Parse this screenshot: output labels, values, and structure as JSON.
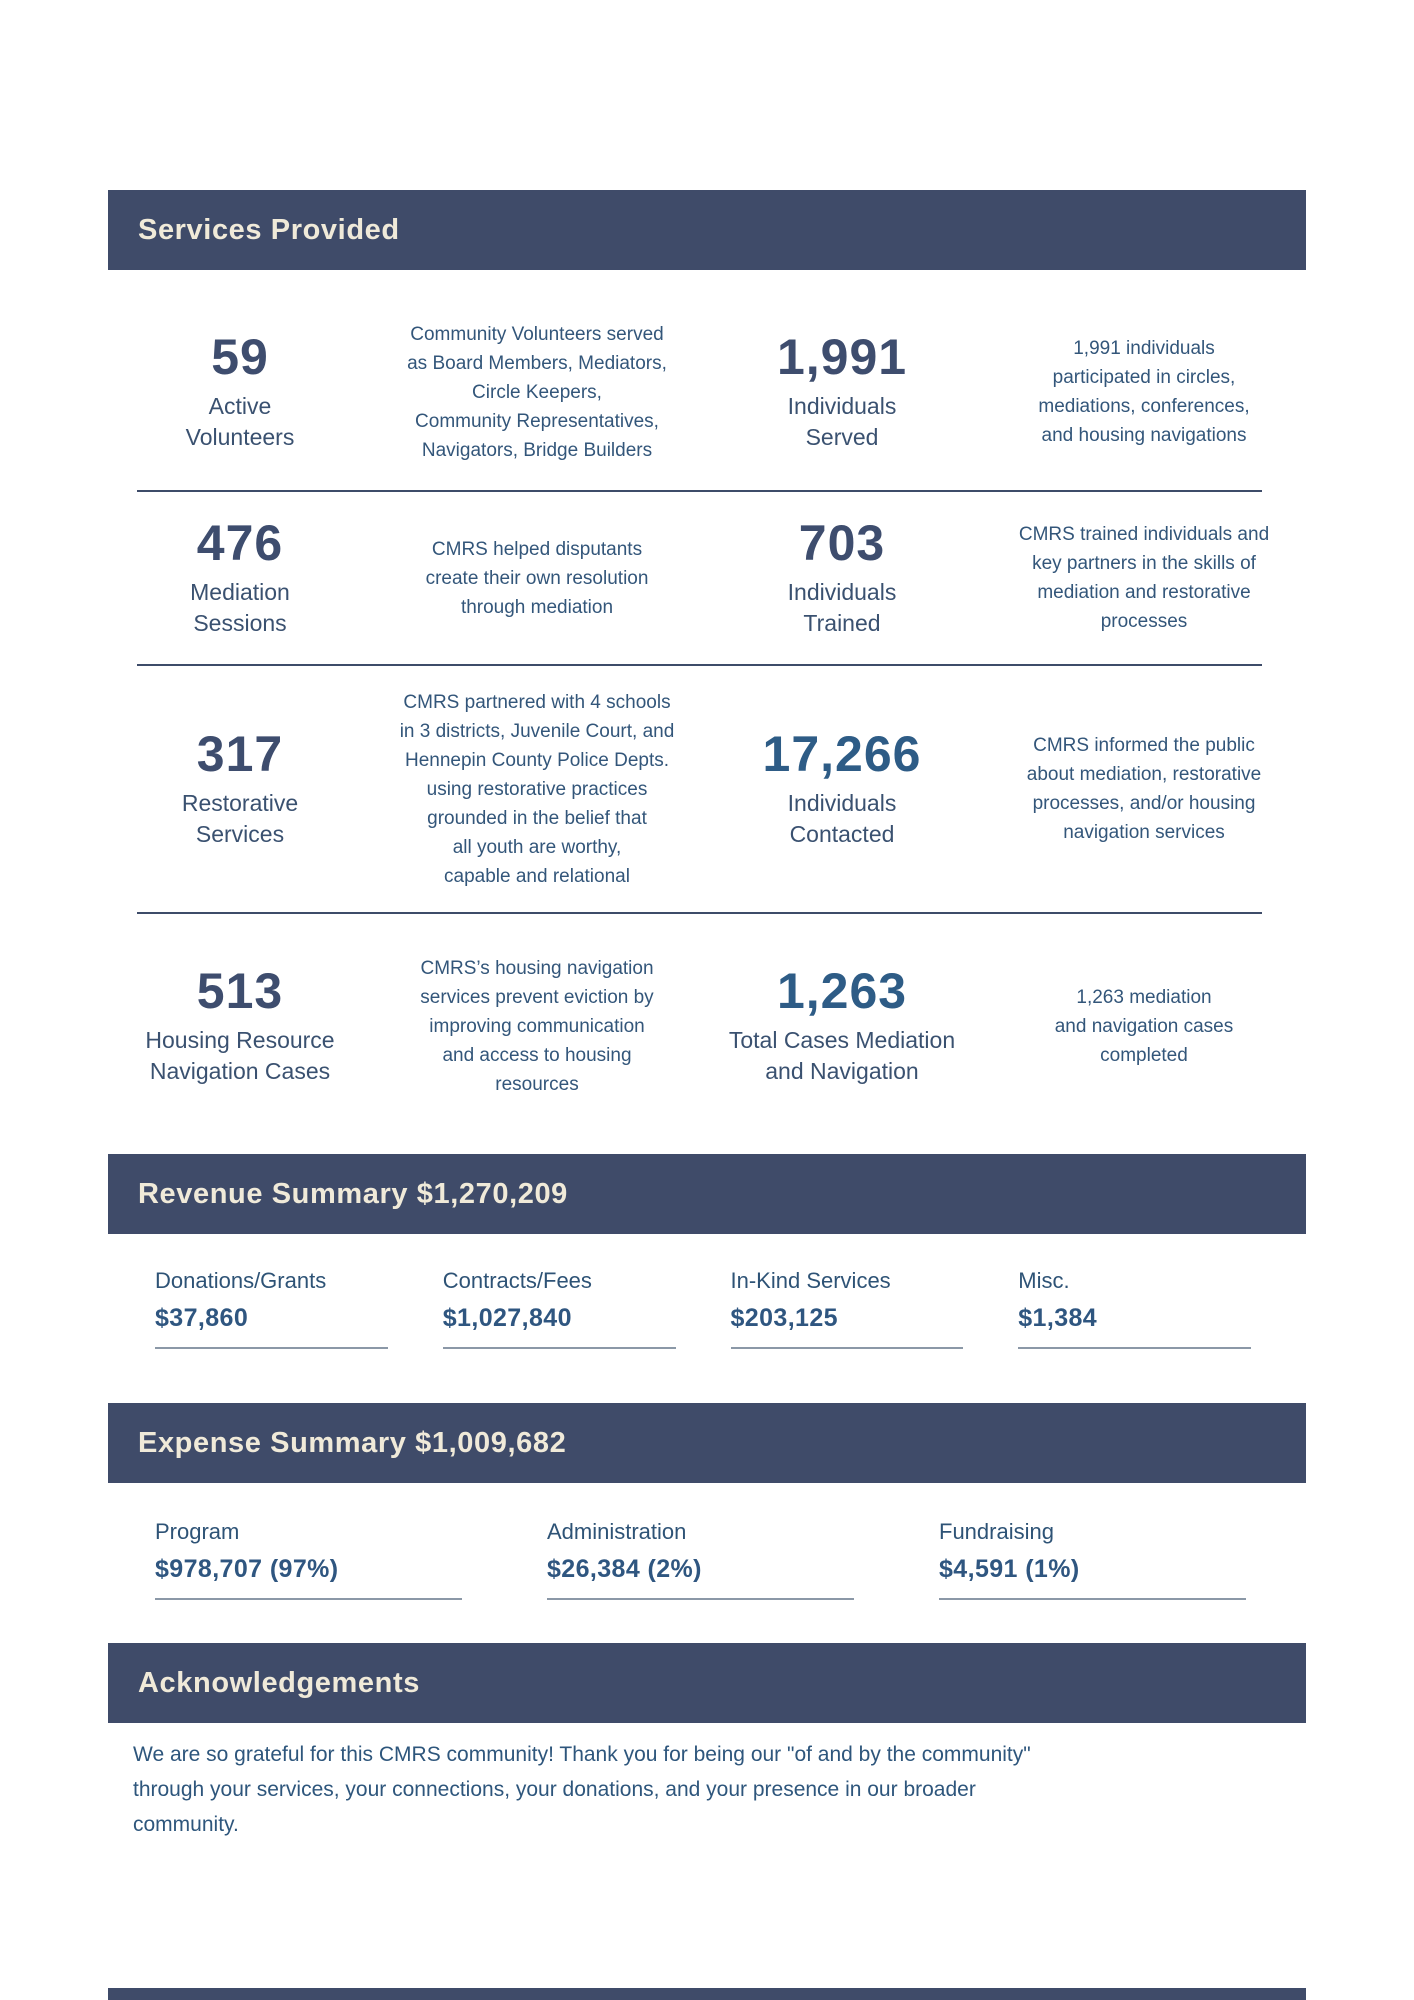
{
  "palette": {
    "band_background": "#3f4b69",
    "band_text": "#f0ead9",
    "stat_number_navy": "#3e4d6e",
    "stat_number_blue": "#2e5c86",
    "body_text": "#33567a",
    "underline": "#8b98a7"
  },
  "services": {
    "title": "Services Provided",
    "rows": [
      {
        "left": {
          "value": "59",
          "label": "Active\nVolunteers",
          "desc": "Community Volunteers served\nas Board Members, Mediators,\nCircle Keepers,\nCommunity Representatives,\nNavigators, Bridge Builders"
        },
        "right": {
          "value": "1,991",
          "label": "Individuals\nServed",
          "desc": "1,991 individuals\nparticipated in circles,\nmediations, conferences,\nand housing navigations"
        }
      },
      {
        "left": {
          "value": "476",
          "label": "Mediation\nSessions",
          "desc": "CMRS helped disputants\ncreate their own resolution\nthrough mediation"
        },
        "right": {
          "value": "703",
          "label": "Individuals\nTrained",
          "desc": "CMRS trained individuals and\nkey partners in the skills of\nmediation and restorative\nprocesses"
        }
      },
      {
        "left": {
          "value": "317",
          "label": "Restorative\nServices",
          "desc": "CMRS partnered with 4 schools\nin 3 districts, Juvenile Court, and\nHennepin County Police Depts.\nusing restorative practices\ngrounded in the belief that\nall youth are worthy,\ncapable and relational"
        },
        "right": {
          "value": "17,266",
          "label": "Individuals\nContacted",
          "desc": "CMRS informed the public\nabout mediation, restorative\nprocesses, and/or housing\nnavigation services"
        }
      },
      {
        "left": {
          "value": "513",
          "label": "Housing Resource\nNavigation Cases",
          "desc": "CMRS’s housing navigation\nservices prevent eviction by\nimproving communication\nand access to housing\nresources"
        },
        "right": {
          "value": "1,263",
          "label": "Total Cases Mediation\nand Navigation",
          "desc": "1,263 mediation\nand navigation cases\ncompleted"
        }
      }
    ]
  },
  "revenue": {
    "title": "Revenue Summary $1,270,209",
    "items": [
      {
        "label": "Donations/Grants",
        "value": "$37,860"
      },
      {
        "label": "Contracts/Fees",
        "value": "$1,027,840"
      },
      {
        "label": "In-Kind Services",
        "value": "$203,125"
      },
      {
        "label": "Misc.",
        "value": "$1,384"
      }
    ]
  },
  "expense": {
    "title": "Expense Summary $1,009,682",
    "items": [
      {
        "label": "Program",
        "value": "$978,707 (97%)"
      },
      {
        "label": "Administration",
        "value": "$26,384 (2%)"
      },
      {
        "label": "Fundraising",
        "value": "$4,591 (1%)"
      }
    ]
  },
  "acknowledgements": {
    "title": "Acknowledgements",
    "body": "We are so grateful for this CMRS community! Thank you for being our \"of and by the community\"\nthrough your services, your connections, your donations, and your presence in our broader\ncommunity."
  }
}
